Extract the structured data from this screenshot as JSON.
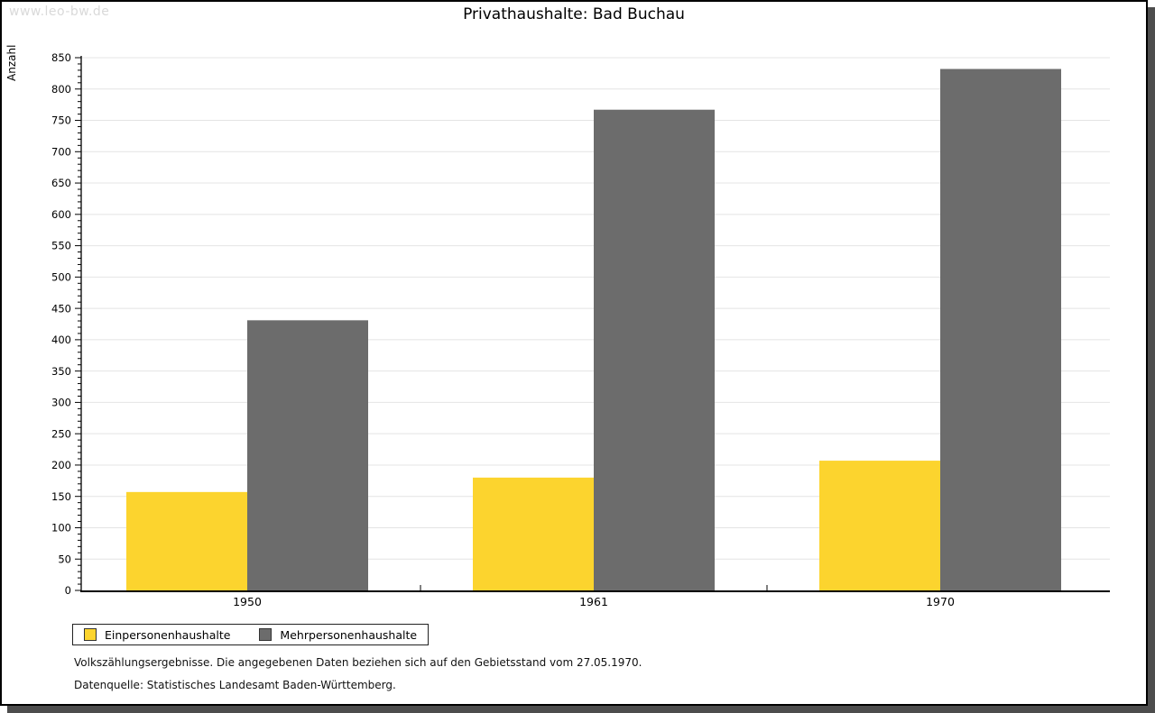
{
  "watermark": "www.leo-bw.de",
  "title": "Privathaushalte: Bad Buchau",
  "chart_data": {
    "type": "bar",
    "title": "Privathaushalte: Bad Buchau",
    "categories": [
      "1950",
      "1961",
      "1970"
    ],
    "series": [
      {
        "name": "Einpersonenhaushalte",
        "color": "#FCD42E",
        "values": [
          157,
          180,
          207
        ]
      },
      {
        "name": "Mehrpersonenhaushalte",
        "color": "#6C6C6C",
        "values": [
          431,
          767,
          832
        ]
      }
    ],
    "xlabel": "",
    "ylabel": "Anzahl",
    "ylim": [
      0,
      850
    ],
    "ytick_step": 50,
    "yminor_step": 10,
    "grid": true,
    "grid_color": "#e4e4e4",
    "axis_color": "#000000",
    "legend_position": "bottom-left"
  },
  "footnotes": {
    "census_note": "Volkszählungsergebnisse. Die angegebenen Daten beziehen sich auf den Gebietsstand vom 27.05.1970.",
    "source_note": "Datenquelle: Statistisches Landesamt Baden-Württemberg."
  },
  "colors": {
    "shadow": "#4d4d4d",
    "watermark": "#d9d9d9",
    "series_yellow": "#FCD42E",
    "series_gray": "#6C6C6C"
  }
}
